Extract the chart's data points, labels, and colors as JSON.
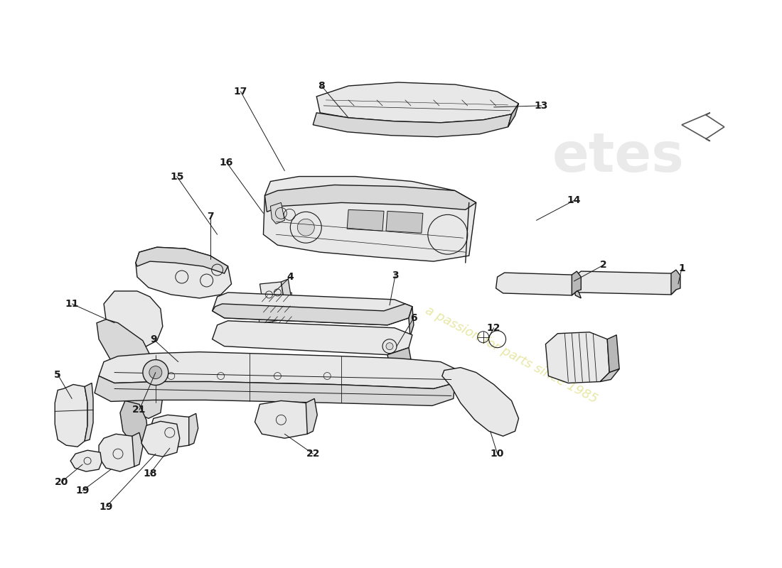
{
  "background_color": "#ffffff",
  "line_color": "#1a1a1a",
  "wm_color": "#d4d45a",
  "wm_alpha": 0.55,
  "label_fs": 10,
  "fig_w": 11.0,
  "fig_h": 8.0,
  "dpi": 100
}
